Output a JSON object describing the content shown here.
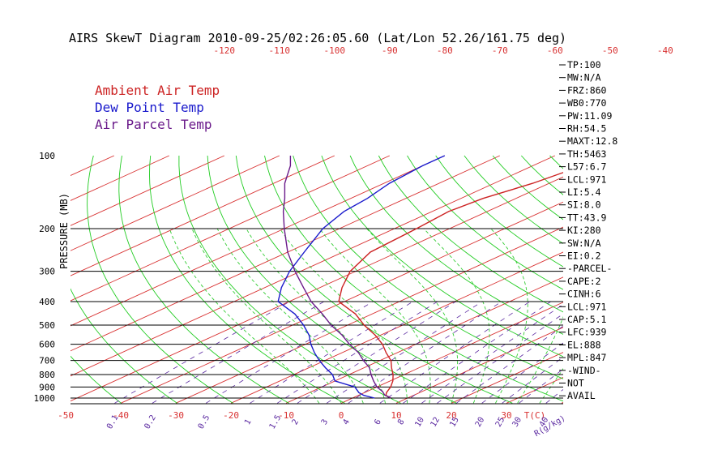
{
  "chart_data": {
    "type": "line",
    "title": "AIRS SkewT Diagram 2010-09-25/02:26:05.60 (Lat/Lon 52.26/161.75 deg)",
    "ylabel": "PRESSURE (MB)",
    "y_scale": "log",
    "ylim": [
      1050,
      100
    ],
    "pressure_ticks": [
      100,
      200,
      300,
      400,
      500,
      600,
      700,
      800,
      900,
      1000
    ],
    "bottom_temp_ticks": [
      -50,
      -40,
      -30,
      -20,
      -10,
      0,
      10,
      20,
      30
    ],
    "bottom_unit_label": "T(C)",
    "top_temp_ticks": [
      -120,
      -110,
      -100,
      -90,
      -80,
      -70,
      -60,
      -50,
      -40
    ],
    "mixing_ratio_ticks": [
      "0.1",
      "0.2",
      "0.5",
      "1",
      "1.5",
      "2",
      "3",
      "4",
      "6",
      "8",
      "10",
      "12",
      "15",
      "20",
      "25",
      "30",
      "40"
    ],
    "mixing_ratio_unit_label": "R(g/kg)",
    "legend": [
      {
        "label": "Ambient Air Temp",
        "color": "#cc2222"
      },
      {
        "label": "Dew Point Temp",
        "color": "#1a1acc"
      },
      {
        "label": "Air Parcel Temp",
        "color": "#6a1a8a"
      }
    ],
    "series": [
      {
        "name": "Ambient Air Temp",
        "color": "#cc2222",
        "points": [
          [
            1000,
            7
          ],
          [
            975,
            5
          ],
          [
            950,
            4
          ],
          [
            900,
            2.5
          ],
          [
            850,
            0.5
          ],
          [
            800,
            -2
          ],
          [
            750,
            -5
          ],
          [
            700,
            -8
          ],
          [
            650,
            -12
          ],
          [
            600,
            -16
          ],
          [
            550,
            -21
          ],
          [
            500,
            -27
          ],
          [
            450,
            -33
          ],
          [
            400,
            -41
          ],
          [
            350,
            -46
          ],
          [
            300,
            -51
          ],
          [
            250,
            -55
          ],
          [
            200,
            -56
          ],
          [
            170,
            -57
          ],
          [
            150,
            -56
          ],
          [
            130,
            -53
          ],
          [
            110,
            -51
          ],
          [
            100,
            -50
          ]
        ]
      },
      {
        "name": "Dew Point Temp",
        "color": "#1a1acc",
        "points": [
          [
            1000,
            4
          ],
          [
            975,
            1
          ],
          [
            950,
            -1
          ],
          [
            900,
            -4
          ],
          [
            850,
            -10
          ],
          [
            800,
            -13
          ],
          [
            750,
            -17
          ],
          [
            700,
            -21
          ],
          [
            650,
            -25
          ],
          [
            600,
            -29
          ],
          [
            550,
            -33
          ],
          [
            500,
            -38
          ],
          [
            450,
            -44
          ],
          [
            400,
            -52
          ],
          [
            350,
            -57
          ],
          [
            300,
            -62
          ],
          [
            250,
            -67
          ],
          [
            200,
            -73
          ],
          [
            170,
            -76
          ],
          [
            150,
            -77
          ],
          [
            130,
            -79
          ],
          [
            110,
            -80
          ],
          [
            100,
            -80
          ]
        ]
      },
      {
        "name": "Air Parcel Temp",
        "color": "#6a1a8a",
        "points": [
          [
            1000,
            7
          ],
          [
            971,
            4.6
          ],
          [
            939,
            2.8
          ],
          [
            900,
            0
          ],
          [
            850,
            -3
          ],
          [
            800,
            -6
          ],
          [
            750,
            -9
          ],
          [
            700,
            -13
          ],
          [
            650,
            -17
          ],
          [
            600,
            -22
          ],
          [
            550,
            -27
          ],
          [
            500,
            -33
          ],
          [
            450,
            -39
          ],
          [
            400,
            -46
          ],
          [
            350,
            -53
          ],
          [
            300,
            -61
          ],
          [
            250,
            -70
          ],
          [
            200,
            -80
          ],
          [
            170,
            -87
          ],
          [
            150,
            -92
          ],
          [
            130,
            -98
          ],
          [
            110,
            -104
          ],
          [
            100,
            -108
          ]
        ]
      }
    ],
    "indices": [
      "TP:100",
      "MW:N/A",
      "FRZ:860",
      "WB0:770",
      "PW:11.09",
      "RH:54.5",
      "MAXT:12.8",
      "TH:5463",
      "L57:6.7",
      "LCL:971",
      "LI:5.4",
      "SI:8.0",
      "TT:43.9",
      "KI:280",
      "SW:N/A",
      "EI:0.2",
      "-PARCEL-",
      "CAPE:2",
      "CINH:6",
      "LCL:971",
      "CAP:5.1",
      "LFC:939",
      "EL:888",
      "MPL:847",
      "-WIND-",
      "NOT",
      "AVAIL"
    ],
    "colors": {
      "isotherm": "#d83030",
      "dry_adiabat": "#22cc22",
      "moist_adiabat": "#33cc33",
      "mixing_ratio": "#5a28a0",
      "isobar": "#000000"
    }
  }
}
